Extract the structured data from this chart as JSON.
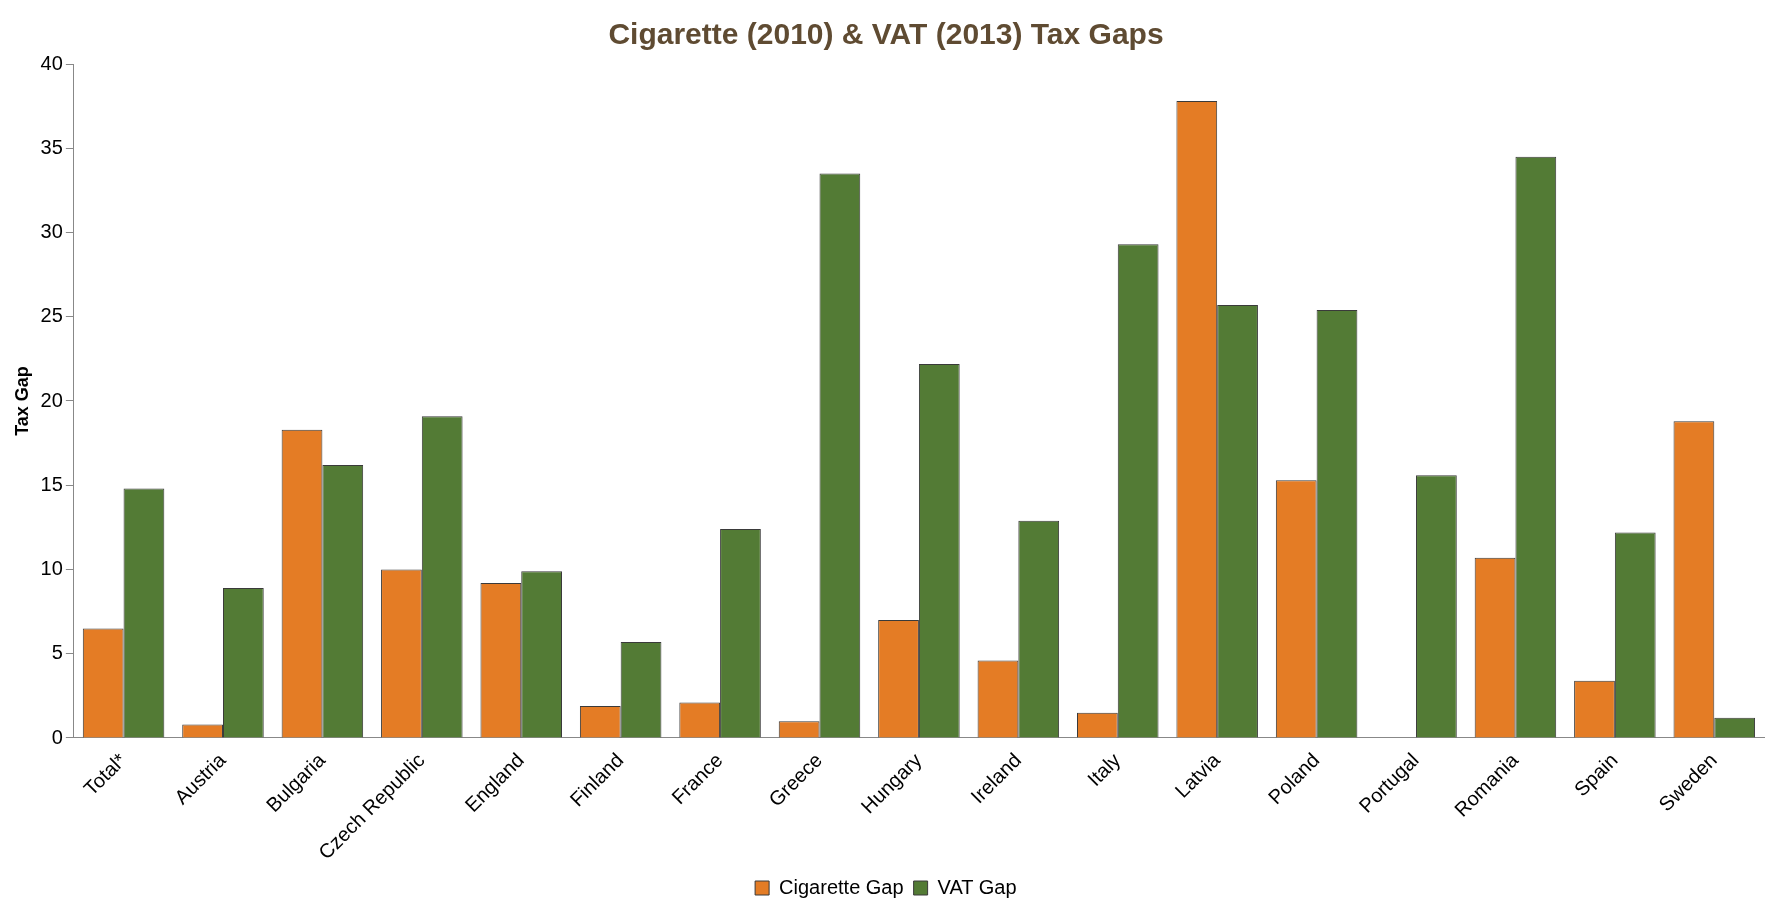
{
  "chart_data": {
    "type": "bar",
    "title": "Cigarette (2010) & VAT (2013) Tax Gaps",
    "ylabel": "Tax Gap",
    "categories": [
      "Total*",
      "Austria",
      "Bulgaria",
      "Czech Republic",
      "England",
      "Finland",
      "France",
      "Greece",
      "Hungary",
      "Ireland",
      "Italy",
      "Latvia",
      "Poland",
      "Portugal",
      "Romania",
      "Spain",
      "Sweden"
    ],
    "series": [
      {
        "name": "Cigarette Gap",
        "color": "#e47c25",
        "values": [
          6.5,
          0.8,
          18.3,
          10.0,
          9.2,
          1.9,
          2.1,
          1.0,
          7.0,
          4.6,
          1.5,
          37.8,
          15.3,
          null,
          10.7,
          3.4,
          18.8
        ]
      },
      {
        "name": "VAT Gap",
        "color": "#537b35",
        "values": [
          14.8,
          8.9,
          16.2,
          19.1,
          9.9,
          5.7,
          12.4,
          33.5,
          22.2,
          12.9,
          29.3,
          25.7,
          25.4,
          15.6,
          34.5,
          12.2,
          1.2
        ]
      }
    ],
    "ylim": [
      0,
      40
    ],
    "yticks": [
      0,
      5,
      10,
      15,
      20,
      25,
      30,
      35,
      40
    ],
    "grid": false,
    "legend": "bottom"
  }
}
